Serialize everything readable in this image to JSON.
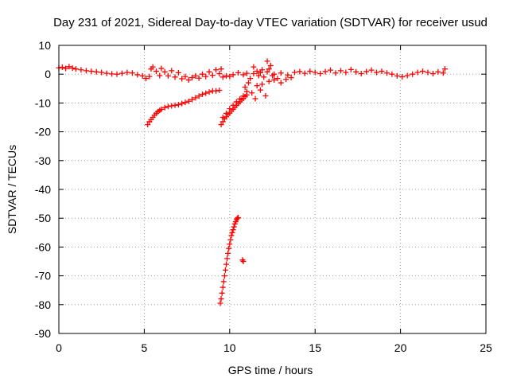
{
  "chart_data": {
    "type": "scatter",
    "title": "Day 231 of 2021, Sidereal Day-to-day VTEC variation (SDTVAR) for receiver usud",
    "xlabel": "GPS time / hours",
    "ylabel": "SDTVAR / TECUs",
    "xlim": [
      0,
      25
    ],
    "ylim": [
      -90,
      10
    ],
    "xticks": [
      "0",
      "5",
      "10",
      "15",
      "20",
      "25"
    ],
    "yticks": [
      "10",
      "0",
      "-10",
      "-20",
      "-30",
      "-40",
      "-50",
      "-60",
      "-70",
      "-80",
      "-90"
    ],
    "grid": true,
    "marker": "plus",
    "color": "#ff0000",
    "series": [
      {
        "name": "SDTVAR band near zero",
        "points": [
          [
            0.0,
            2.2
          ],
          [
            0.2,
            2.4
          ],
          [
            0.4,
            2.0
          ],
          [
            0.6,
            2.6
          ],
          [
            0.8,
            2.1
          ],
          [
            1.0,
            1.8
          ],
          [
            1.3,
            1.5
          ],
          [
            1.6,
            1.2
          ],
          [
            1.9,
            1.0
          ],
          [
            2.2,
            0.8
          ],
          [
            2.5,
            0.6
          ],
          [
            2.8,
            0.3
          ],
          [
            3.1,
            0.1
          ],
          [
            3.4,
            0.0
          ],
          [
            3.7,
            0.3
          ],
          [
            4.0,
            0.6
          ],
          [
            4.3,
            0.4
          ],
          [
            4.6,
            -0.2
          ],
          [
            4.9,
            -0.6
          ],
          [
            5.1,
            -1.5
          ],
          [
            5.3,
            -0.8
          ],
          [
            5.4,
            1.8
          ],
          [
            5.5,
            2.5
          ],
          [
            5.7,
            1.0
          ],
          [
            5.9,
            -0.5
          ],
          [
            6.0,
            2.0
          ],
          [
            6.2,
            0.8
          ],
          [
            6.4,
            -0.6
          ],
          [
            6.6,
            1.2
          ],
          [
            6.8,
            -1.0
          ],
          [
            7.0,
            0.5
          ],
          [
            7.2,
            -1.6
          ],
          [
            7.4,
            -0.8
          ],
          [
            7.6,
            -2.0
          ],
          [
            7.8,
            -1.2
          ],
          [
            8.0,
            -0.6
          ],
          [
            8.2,
            -1.4
          ],
          [
            8.4,
            0.0
          ],
          [
            8.6,
            -0.8
          ],
          [
            8.8,
            0.8
          ],
          [
            9.0,
            -0.4
          ],
          [
            9.2,
            1.5
          ],
          [
            9.4,
            0.2
          ],
          [
            9.5,
            1.8
          ],
          [
            9.6,
            -1.0
          ],
          [
            9.8,
            -0.6
          ],
          [
            10.0,
            -0.8
          ],
          [
            10.2,
            -0.2
          ],
          [
            10.5,
            0.5
          ],
          [
            10.8,
            -0.2
          ],
          [
            11.0,
            0.3
          ],
          [
            11.4,
            0.2
          ],
          [
            11.8,
            0.5
          ],
          [
            12.2,
            0.8
          ],
          [
            12.6,
            0.0
          ],
          [
            13.0,
            0.4
          ],
          [
            13.4,
            -0.3
          ],
          [
            13.6,
            -1.2
          ],
          [
            13.8,
            0.6
          ],
          [
            14.1,
            0.9
          ],
          [
            14.4,
            0.3
          ],
          [
            14.7,
            1.0
          ],
          [
            15.0,
            0.6
          ],
          [
            15.3,
            0.2
          ],
          [
            15.6,
            0.9
          ],
          [
            15.9,
            1.4
          ],
          [
            16.2,
            0.4
          ],
          [
            16.5,
            1.2
          ],
          [
            16.8,
            0.6
          ],
          [
            17.1,
            1.6
          ],
          [
            17.4,
            0.8
          ],
          [
            17.7,
            0.2
          ],
          [
            18.0,
            0.9
          ],
          [
            18.3,
            1.4
          ],
          [
            18.6,
            0.6
          ],
          [
            18.9,
            1.0
          ],
          [
            19.2,
            0.4
          ],
          [
            19.5,
            0.0
          ],
          [
            19.8,
            -0.6
          ],
          [
            20.1,
            -0.9
          ],
          [
            20.4,
            -0.5
          ],
          [
            20.7,
            0.0
          ],
          [
            21.0,
            0.6
          ],
          [
            21.3,
            1.0
          ],
          [
            21.6,
            0.6
          ],
          [
            21.9,
            0.2
          ],
          [
            22.2,
            0.8
          ],
          [
            22.5,
            0.4
          ],
          [
            22.6,
            1.8
          ]
        ]
      },
      {
        "name": "SDTVAR irregular spikes",
        "points": [
          [
            10.9,
            -4.5
          ],
          [
            11.0,
            -6.0
          ],
          [
            11.1,
            -3.0
          ],
          [
            11.2,
            -1.5
          ],
          [
            11.3,
            -6.5
          ],
          [
            11.4,
            2.5
          ],
          [
            11.5,
            -8.5
          ],
          [
            11.6,
            -4.0
          ],
          [
            11.7,
            -0.5
          ],
          [
            11.8,
            -5.5
          ],
          [
            11.9,
            1.5
          ],
          [
            12.0,
            -1.0
          ],
          [
            12.1,
            -7.5
          ],
          [
            12.2,
            4.5
          ],
          [
            12.3,
            -2.5
          ],
          [
            12.4,
            3.0
          ],
          [
            12.5,
            -0.5
          ],
          [
            12.6,
            -2.0
          ],
          [
            12.8,
            -1.5
          ],
          [
            13.0,
            -3.0
          ],
          [
            13.3,
            -1.8
          ],
          [
            11.6,
            1.0
          ],
          [
            11.9,
            -3.5
          ],
          [
            12.3,
            1.8
          ]
        ]
      },
      {
        "name": "SDTVAR descending branch 5-9h",
        "points": [
          [
            5.2,
            -17.5
          ],
          [
            5.3,
            -16.5
          ],
          [
            5.4,
            -15.8
          ],
          [
            5.5,
            -15.0
          ],
          [
            5.6,
            -14.2
          ],
          [
            5.7,
            -13.6
          ],
          [
            5.8,
            -13.0
          ],
          [
            5.9,
            -12.6
          ],
          [
            6.0,
            -12.2
          ],
          [
            6.2,
            -11.6
          ],
          [
            6.4,
            -11.2
          ],
          [
            6.6,
            -11.0
          ],
          [
            6.8,
            -10.8
          ],
          [
            7.0,
            -10.6
          ],
          [
            7.2,
            -10.2
          ],
          [
            7.4,
            -9.8
          ],
          [
            7.6,
            -9.4
          ],
          [
            7.8,
            -8.8
          ],
          [
            8.0,
            -8.2
          ],
          [
            8.2,
            -7.6
          ],
          [
            8.4,
            -7.0
          ],
          [
            8.6,
            -6.6
          ],
          [
            8.8,
            -6.2
          ],
          [
            9.0,
            -5.8
          ],
          [
            9.2,
            -5.8
          ],
          [
            9.4,
            -5.6
          ]
        ]
      },
      {
        "name": "SDTVAR recovery branch 9.5-11h",
        "points": [
          [
            9.5,
            -17.5
          ],
          [
            9.6,
            -16.5
          ],
          [
            9.7,
            -15.5
          ],
          [
            9.8,
            -14.8
          ],
          [
            9.9,
            -14.0
          ],
          [
            10.0,
            -13.5
          ],
          [
            10.1,
            -12.8
          ],
          [
            10.2,
            -12.2
          ],
          [
            10.3,
            -11.5
          ],
          [
            10.4,
            -10.8
          ],
          [
            10.5,
            -10.2
          ],
          [
            10.6,
            -9.6
          ],
          [
            10.7,
            -9.0
          ],
          [
            10.8,
            -8.4
          ],
          [
            10.9,
            -7.8
          ],
          [
            11.0,
            -7.2
          ],
          [
            9.6,
            -15.0
          ],
          [
            9.8,
            -13.6
          ],
          [
            10.0,
            -12.0
          ],
          [
            10.2,
            -10.8
          ],
          [
            10.4,
            -9.6
          ],
          [
            10.6,
            -8.6
          ],
          [
            10.8,
            -7.6
          ]
        ]
      },
      {
        "name": "SDTVAR steep outlier track",
        "points": [
          [
            9.45,
            -79.5
          ],
          [
            9.5,
            -78.0
          ],
          [
            9.55,
            -76.0
          ],
          [
            9.6,
            -74.0
          ],
          [
            9.65,
            -72.0
          ],
          [
            9.7,
            -70.0
          ],
          [
            9.75,
            -68.0
          ],
          [
            9.8,
            -66.0
          ],
          [
            9.85,
            -64.0
          ],
          [
            9.9,
            -62.2
          ],
          [
            9.95,
            -60.5
          ],
          [
            10.0,
            -59.0
          ],
          [
            10.05,
            -57.5
          ],
          [
            10.1,
            -56.0
          ],
          [
            10.15,
            -55.0
          ],
          [
            10.2,
            -54.0
          ],
          [
            10.25,
            -53.0
          ],
          [
            10.3,
            -52.0
          ],
          [
            10.35,
            -51.2
          ],
          [
            10.4,
            -50.5
          ],
          [
            10.45,
            -50.0
          ],
          [
            10.5,
            -49.8
          ]
        ]
      },
      {
        "name": "SDTVAR isolated points",
        "points": [
          [
            10.75,
            -64.5
          ],
          [
            10.8,
            -65.0
          ]
        ]
      }
    ]
  }
}
